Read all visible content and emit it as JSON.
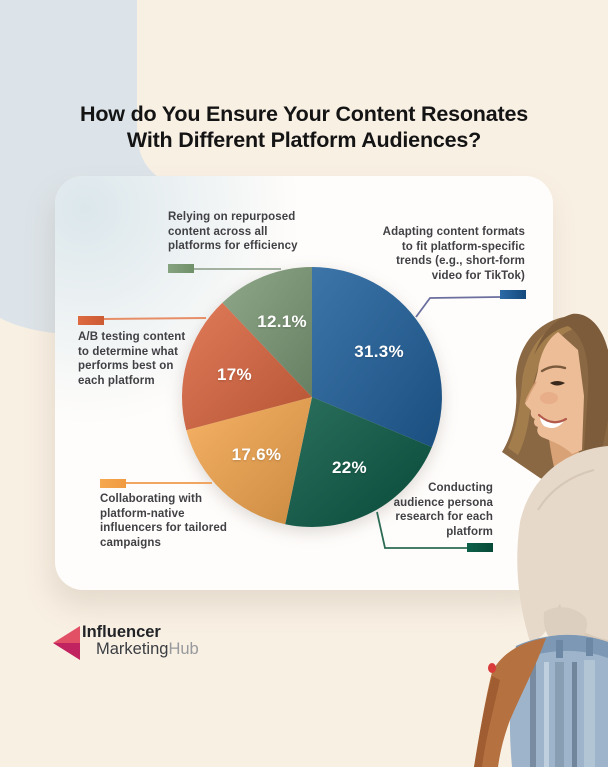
{
  "page": {
    "background_color": "#f9f0e4",
    "accent_band_color": "#dde4e9",
    "card_color": "#fffdfb"
  },
  "title": {
    "line1": "How do You Ensure Your Content Resonates",
    "line2": "With Different Platform Audiences?"
  },
  "chart_data": {
    "type": "pie",
    "title": "How do You Ensure Your Content Resonates With Different Platform Audiences?",
    "start_angle_deg": 0,
    "direction": "clockwise",
    "legend_position": "callouts-around-pie",
    "slices": [
      {
        "label": "Adapting content formats to fit platform-specific trends (e.g., short-form video for TikTok)",
        "value": 31.3,
        "display": "31.3%",
        "color": "#20609c"
      },
      {
        "label": "Conducting audience persona research for each platform",
        "value": 22,
        "display": "22%",
        "color": "#0b5a45"
      },
      {
        "label": "Collaborating with platform-native influencers for tailored campaigns",
        "value": 17.6,
        "display": "17.6%",
        "color": "#f6a84f"
      },
      {
        "label": "A/B testing content to determine what performs best on each platform",
        "value": 17,
        "display": "17%",
        "color": "#dd6740"
      },
      {
        "label": "Relying on repurposed content across all platforms for efficiency",
        "value": 12.1,
        "display": "12.1%",
        "color": "#7e9b77"
      }
    ]
  },
  "callouts": [
    {
      "id": "relying",
      "swatch_color": "#7e9b77",
      "lines": [
        "Relying on repurposed",
        "content across all",
        "platforms for efficiency"
      ]
    },
    {
      "id": "adapting",
      "swatch_color": "#20609c",
      "lines": [
        "Adapting content formats",
        "to fit platform-specific",
        "trends (e.g., short-form",
        "video for TikTok)"
      ]
    },
    {
      "id": "ab_testing",
      "swatch_color": "#dd6740",
      "lines": [
        "A/B testing content",
        "to determine what",
        "performs best on",
        "each platform"
      ]
    },
    {
      "id": "collaborating",
      "swatch_color": "#f6a84f",
      "lines": [
        "Collaborating with",
        "platform-native",
        "influencers for tailored",
        "campaigns"
      ]
    },
    {
      "id": "conducting",
      "swatch_color": "#0b5a45",
      "lines": [
        "Conducting",
        "audience persona",
        "research for each",
        "platform"
      ]
    }
  ],
  "logo": {
    "word1": "Influencer",
    "word2": "Marketing",
    "word3": "Hub",
    "arrow_light": "#e15065",
    "arrow_dark": "#c0235f"
  }
}
